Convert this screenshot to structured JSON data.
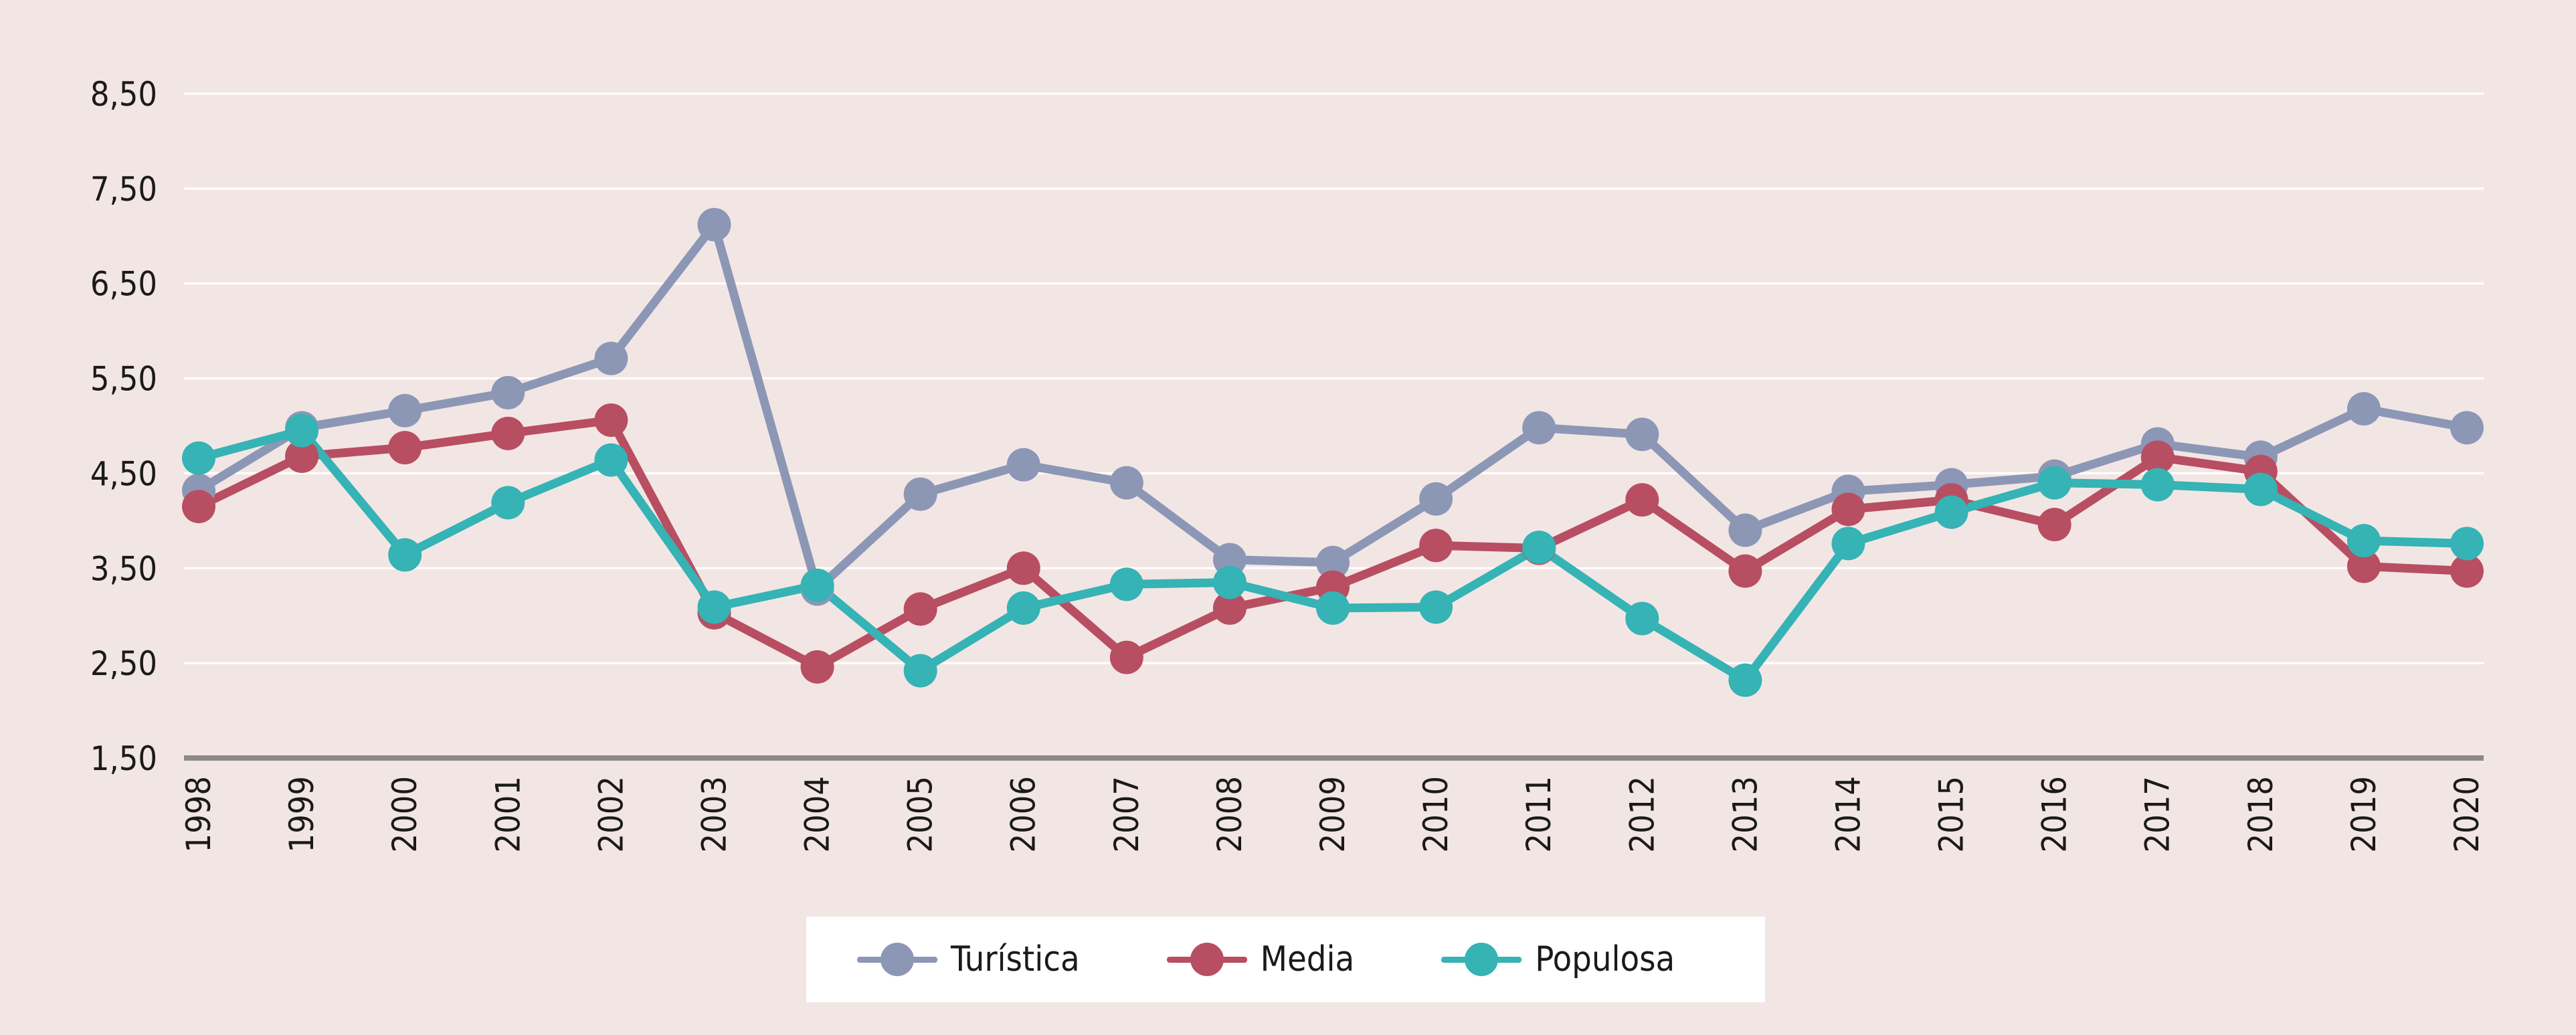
{
  "chart_data": {
    "type": "line",
    "title": "",
    "xlabel": "",
    "ylabel": "",
    "categories": [
      "1998",
      "1999",
      "2000",
      "2001",
      "2002",
      "2003",
      "2004",
      "2005",
      "2006",
      "2007",
      "2008",
      "2009",
      "2010",
      "2011",
      "2012",
      "2013",
      "2014",
      "2015",
      "2016",
      "2017",
      "2018",
      "2019",
      "2020"
    ],
    "y_ticks": [
      "8,50",
      "7,50",
      "6,50",
      "5,50",
      "4,50",
      "3,50",
      "2,50",
      "1,50"
    ],
    "y_tick_values": [
      8.5,
      7.5,
      6.5,
      5.5,
      4.5,
      3.5,
      2.5,
      1.5
    ],
    "ylim": [
      1.5,
      8.5
    ],
    "grid": true,
    "legend_position": "bottom-center",
    "series": [
      {
        "name": "Turística",
        "color": "#8c97b6",
        "values": [
          4.32,
          4.98,
          5.16,
          5.35,
          5.71,
          7.12,
          3.28,
          4.28,
          4.59,
          4.4,
          3.59,
          3.56,
          4.23,
          4.98,
          4.91,
          3.9,
          4.31,
          4.38,
          4.47,
          4.81,
          4.67,
          5.18,
          4.98
        ]
      },
      {
        "name": "Media",
        "color": "#b84e62",
        "values": [
          4.15,
          4.68,
          4.77,
          4.92,
          5.06,
          3.03,
          2.46,
          3.07,
          3.5,
          2.56,
          3.08,
          3.3,
          3.74,
          3.71,
          4.22,
          3.47,
          4.12,
          4.22,
          3.96,
          4.67,
          4.52,
          3.52,
          3.47
        ]
      },
      {
        "name": "Populosa",
        "color": "#35b3b5",
        "values": [
          4.66,
          4.95,
          3.64,
          4.19,
          4.64,
          3.09,
          3.32,
          2.42,
          3.08,
          3.33,
          3.35,
          3.08,
          3.09,
          3.72,
          2.97,
          2.32,
          3.76,
          4.09,
          4.4,
          4.38,
          4.33,
          3.79,
          3.76
        ]
      }
    ]
  }
}
